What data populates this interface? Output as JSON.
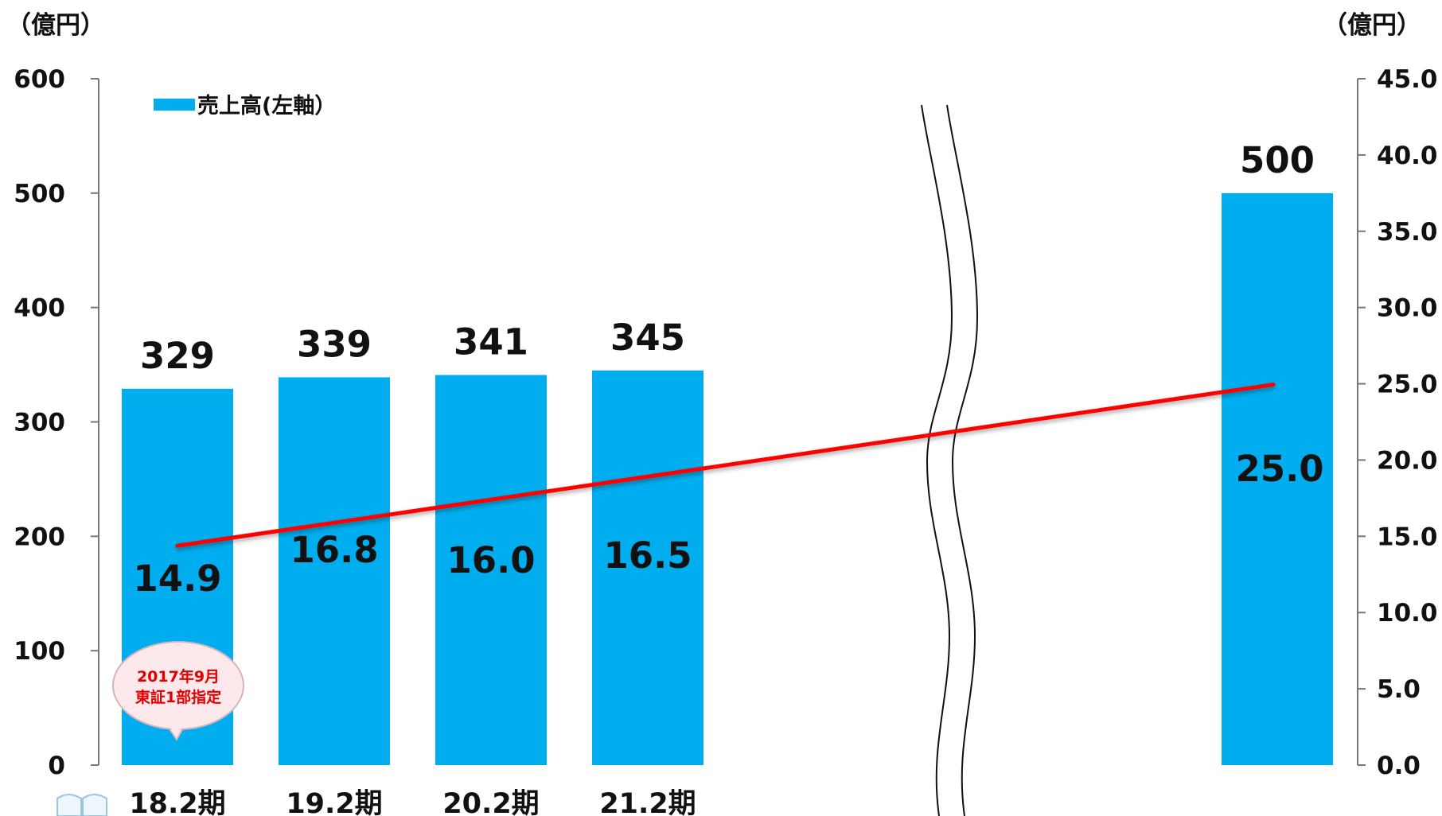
{
  "chart_data": {
    "type": "bar",
    "left_unit": "（億円）",
    "right_unit": "（億円）",
    "categories": [
      "18.2期",
      "19.2期",
      "20.2期",
      "21.2期",
      ""
    ],
    "series": [
      {
        "name": "売上高(左軸）",
        "type": "bar",
        "axis": "left",
        "color": "#00aeef",
        "values": [
          329,
          339,
          341,
          345,
          500
        ],
        "labels": [
          "329",
          "339",
          "341",
          "345",
          "500"
        ]
      },
      {
        "type": "line",
        "axis": "right",
        "color": "#ff0000",
        "values": [
          14.9,
          16.8,
          16.0,
          16.5,
          25.0
        ],
        "labels": [
          "14.9",
          "16.8",
          "16.0",
          "16.5",
          "25.0"
        ]
      }
    ],
    "left_axis": {
      "min": 0,
      "max": 600,
      "ticks": [
        "0",
        "100",
        "200",
        "300",
        "400",
        "500",
        "600"
      ]
    },
    "right_axis": {
      "min": 0,
      "max": 45,
      "ticks": [
        "0.0",
        "5.0",
        "10.0",
        "15.0",
        "20.0",
        "25.0",
        "30.0",
        "35.0",
        "40.0",
        "45.0"
      ]
    },
    "axis_break": "between 21.2期 and final period",
    "legend_position": "top-left",
    "annotation": {
      "line1": "2017年9月",
      "line2": "東証1部指定",
      "category": "18.2期"
    }
  }
}
